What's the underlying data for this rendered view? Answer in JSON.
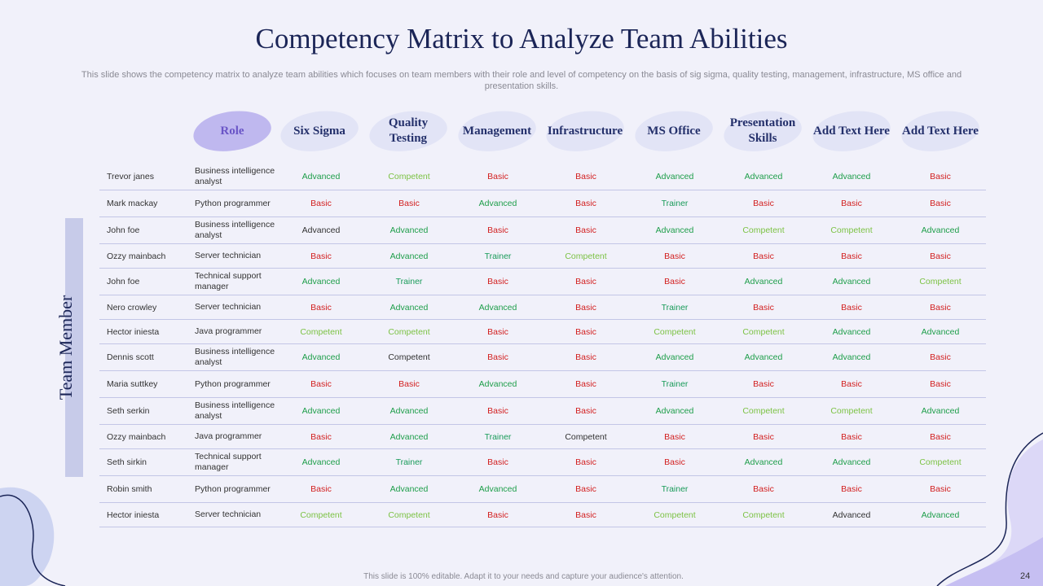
{
  "slide": {
    "title": "Competency Matrix to Analyze Team Abilities",
    "subtitle": "This slide shows the competency matrix to analyze team abilities which focuses on team members with their role and level of competency on the basis of sig sigma, quality testing, management, infrastructure, MS office and presentation skills.",
    "side_label": "Team Member",
    "footer": "This slide is 100% editable. Adapt it to your needs and capture your audience's attention.",
    "page_number": "24"
  },
  "colors": {
    "Advanced": "#1e9e4a",
    "Competent": "#7cc244",
    "Basic": "#d21f1f",
    "Trainer": "#199b59",
    "dark_text": "#333333"
  },
  "headers": [
    "Role",
    "Six Sigma",
    "Quality Testing",
    "Management",
    "Infrastructure",
    "MS Office",
    "Presentation Skills",
    "Add Text Here",
    "Add Text Here"
  ],
  "rows": [
    {
      "name": "Trevor janes",
      "role": "Business intelligence analyst",
      "values": [
        "Advanced",
        "Competent",
        "Basic",
        "Basic",
        "Advanced",
        "Advanced",
        "Advanced",
        "Basic"
      ],
      "dark": []
    },
    {
      "name": "Mark mackay",
      "role": "Python programmer",
      "values": [
        "Basic",
        "Basic",
        "Advanced",
        "Basic",
        "Trainer",
        "Basic",
        "Basic",
        "Basic"
      ],
      "dark": []
    },
    {
      "name": "John foe",
      "role": "Business intelligence analyst",
      "values": [
        "Advanced",
        "Advanced",
        "Basic",
        "Basic",
        "Advanced",
        "Competent",
        "Competent",
        "Advanced"
      ],
      "dark": [
        0
      ]
    },
    {
      "name": "Ozzy mainbach",
      "role": "Server technician",
      "values": [
        "Basic",
        "Advanced",
        "Trainer",
        "Competent",
        "Basic",
        "Basic",
        "Basic",
        "Basic"
      ],
      "dark": []
    },
    {
      "name": "John foe",
      "role": "Technical support manager",
      "values": [
        "Advanced",
        "Trainer",
        "Basic",
        "Basic",
        "Basic",
        "Advanced",
        "Advanced",
        "Competent"
      ],
      "dark": []
    },
    {
      "name": "Nero crowley",
      "role": "Server technician",
      "values": [
        "Basic",
        "Advanced",
        "Advanced",
        "Basic",
        "Trainer",
        "Basic",
        "Basic",
        "Basic"
      ],
      "dark": []
    },
    {
      "name": "Hector iniesta",
      "role": "Java programmer",
      "values": [
        "Competent",
        "Competent",
        "Basic",
        "Basic",
        "Competent",
        "Competent",
        "Advanced",
        "Advanced"
      ],
      "dark": []
    },
    {
      "name": "Dennis scott",
      "role": "Business intelligence analyst",
      "values": [
        "Advanced",
        "Competent",
        "Basic",
        "Basic",
        "Advanced",
        "Advanced",
        "Advanced",
        "Basic"
      ],
      "dark": [
        1
      ]
    },
    {
      "name": "Maria suttkey",
      "role": "Python programmer",
      "values": [
        "Basic",
        "Basic",
        "Advanced",
        "Basic",
        "Trainer",
        "Basic",
        "Basic",
        "Basic"
      ],
      "dark": []
    },
    {
      "name": "Seth serkin",
      "role": "Business intelligence analyst",
      "values": [
        "Advanced",
        "Advanced",
        "Basic",
        "Basic",
        "Advanced",
        "Competent",
        "Competent",
        "Advanced"
      ],
      "dark": []
    },
    {
      "name": "Ozzy mainbach",
      "role": "Java programmer",
      "values": [
        "Basic",
        "Advanced",
        "Trainer",
        "Competent",
        "Basic",
        "Basic",
        "Basic",
        "Basic"
      ],
      "dark": [
        3
      ]
    },
    {
      "name": "Seth sirkin",
      "role": "Technical support manager",
      "values": [
        "Advanced",
        "Trainer",
        "Basic",
        "Basic",
        "Basic",
        "Advanced",
        "Advanced",
        "Competent"
      ],
      "dark": []
    },
    {
      "name": "Robin smith",
      "role": "Python programmer",
      "values": [
        "Basic",
        "Advanced",
        "Advanced",
        "Basic",
        "Trainer",
        "Basic",
        "Basic",
        "Basic"
      ],
      "dark": []
    },
    {
      "name": "Hector iniesta",
      "role": "Server technician",
      "values": [
        "Competent",
        "Competent",
        "Basic",
        "Basic",
        "Competent",
        "Competent",
        "Advanced",
        "Advanced"
      ],
      "dark": [
        6
      ]
    }
  ]
}
